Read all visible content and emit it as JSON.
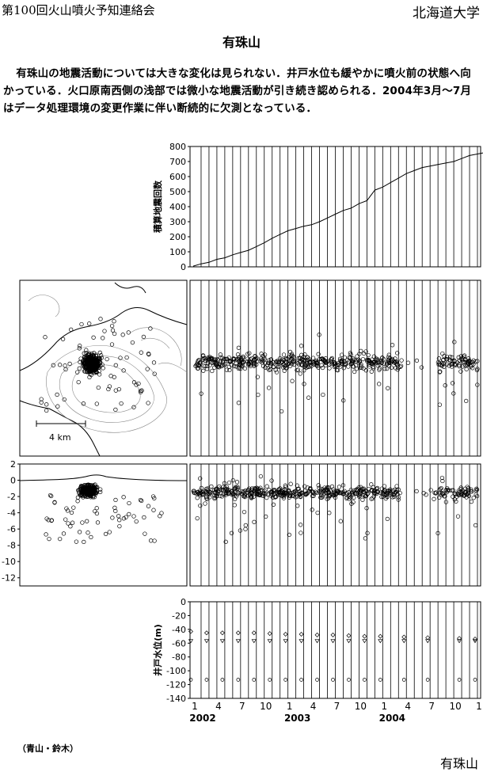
{
  "header": {
    "left": "第100回火山噴火予知連絡会",
    "right": "北海道大学"
  },
  "title": "有珠山",
  "body_text": "有珠山の地震活動については大きな変化は見られない．井戸水位も緩やかに噴火前の状態へ向かっている．火口原南西側の浅部では微小な地震活動が引き続き認められる．2004年3月～7月はデータ処理環境の変更作業に伴い断続的に欠測となっている．",
  "map_scale_label": "4 km",
  "credit": "（青山・鈴木）",
  "footer_right": "有珠山",
  "chart_data": [
    {
      "type": "line",
      "ylabel": "積算地震回数",
      "ylim": [
        0,
        800
      ],
      "yticks": [
        0,
        100,
        200,
        300,
        400,
        500,
        600,
        700,
        800
      ],
      "x": [
        0,
        1,
        2,
        3,
        4,
        5,
        6,
        7,
        8,
        9,
        10,
        11,
        12,
        13,
        14,
        15,
        16,
        17,
        18,
        19,
        20,
        21,
        22,
        23,
        24,
        25,
        26,
        27,
        28,
        29,
        30,
        31,
        32,
        33,
        34,
        35,
        36,
        37
      ],
      "y": [
        5,
        20,
        30,
        50,
        60,
        80,
        95,
        110,
        135,
        160,
        190,
        215,
        240,
        255,
        270,
        280,
        300,
        325,
        350,
        375,
        390,
        420,
        440,
        510,
        530,
        560,
        590,
        620,
        640,
        660,
        670,
        680,
        690,
        700,
        720,
        740,
        750,
        760
      ]
    },
    {
      "type": "scatter",
      "ylabel": "",
      "ylim": [
        -13,
        2
      ],
      "yticks": [
        2,
        0,
        -2,
        -4,
        -6,
        -8,
        -10,
        -12
      ]
    },
    {
      "type": "scatter",
      "ylabel": "井戸水位(m)",
      "ylim": [
        -140,
        0
      ],
      "yticks": [
        0,
        -20,
        -40,
        -60,
        -80,
        -100,
        -120,
        -140
      ],
      "well_months": [
        0,
        2,
        4,
        6,
        8,
        10,
        12,
        14,
        16,
        18,
        20,
        22,
        24,
        27,
        30,
        34,
        36
      ],
      "series": [
        {
          "values": [
            -43,
            -45,
            -45,
            -45,
            -45,
            -46,
            -47,
            -47,
            -48,
            -48,
            -49,
            -50,
            -50,
            -51,
            -52,
            -53,
            -54
          ]
        },
        {
          "values": [
            -57,
            -57,
            -57,
            -57,
            -57,
            -57,
            -57,
            -57,
            -57,
            -57,
            -57,
            -57,
            -57,
            -57,
            -57,
            -57,
            -57
          ]
        },
        {
          "values": [
            -113,
            -113,
            -113,
            -113,
            -113,
            -113,
            -113,
            -113,
            -113,
            -113,
            -113,
            -113,
            -113,
            -113,
            -113,
            -113,
            -113
          ]
        }
      ]
    }
  ],
  "x_axis": {
    "tick_labels": [
      {
        "month": 0,
        "label": "1"
      },
      {
        "month": 3,
        "label": "4"
      },
      {
        "month": 6,
        "label": "7"
      },
      {
        "month": 9,
        "label": "10"
      },
      {
        "month": 12,
        "label": "1"
      },
      {
        "month": 15,
        "label": "4"
      },
      {
        "month": 18,
        "label": "7"
      },
      {
        "month": 21,
        "label": "10"
      },
      {
        "month": 24,
        "label": "1"
      },
      {
        "month": 27,
        "label": "4"
      },
      {
        "month": 30,
        "label": "7"
      },
      {
        "month": 33,
        "label": "10"
      },
      {
        "month": 36,
        "label": "1"
      }
    ],
    "year_labels": [
      {
        "month": 0,
        "label": "2002"
      },
      {
        "month": 12,
        "label": "2003"
      },
      {
        "month": 24,
        "label": "2004"
      }
    ],
    "months_span": 37
  }
}
